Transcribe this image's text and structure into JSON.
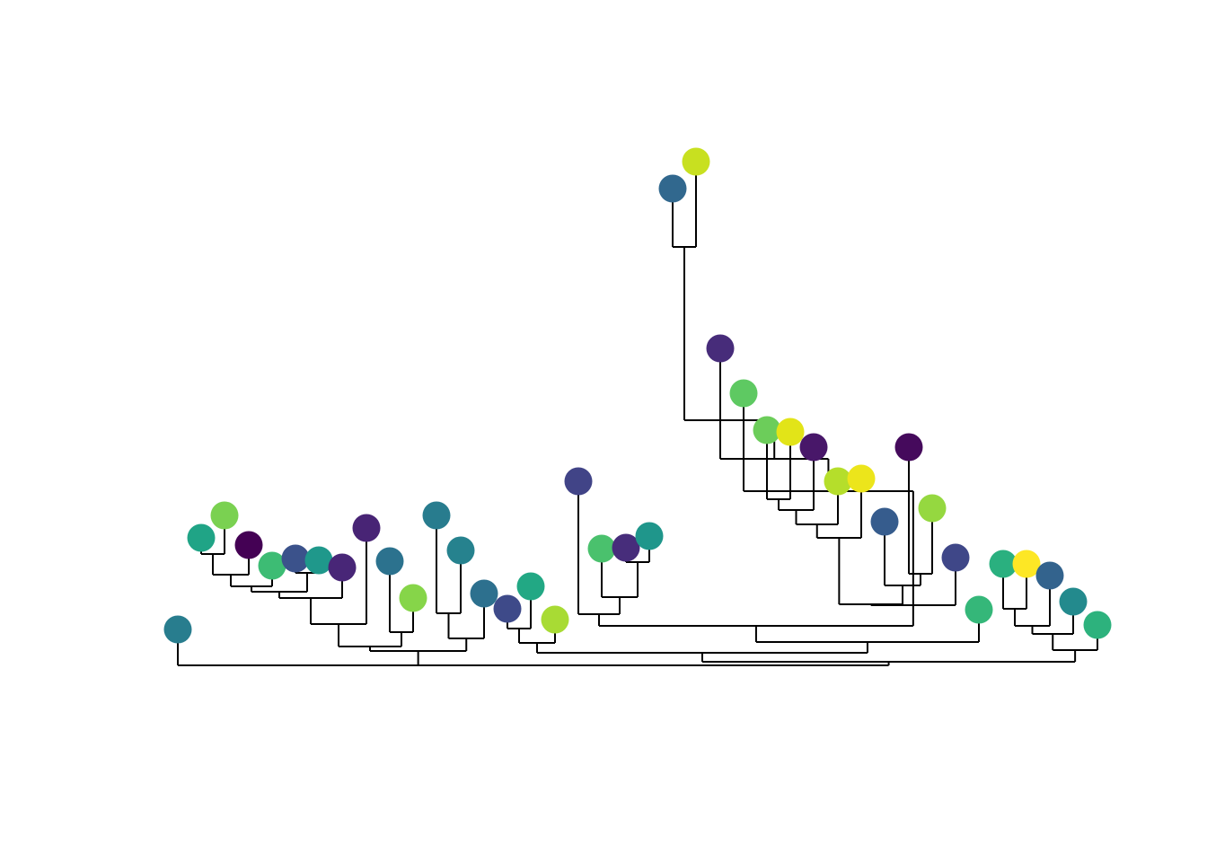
{
  "diagram": {
    "type": "dendrogram",
    "description_visible_text": "",
    "palette": "viridis",
    "tips": [
      {
        "id": "t01",
        "color": "#287d8e"
      },
      {
        "id": "t02",
        "color": "#20a486"
      },
      {
        "id": "t03",
        "color": "#7ad151"
      },
      {
        "id": "t04",
        "color": "#440154"
      },
      {
        "id": "t05",
        "color": "#3dbc74"
      },
      {
        "id": "t06",
        "color": "#3b528b"
      },
      {
        "id": "t07",
        "color": "#1f988b"
      },
      {
        "id": "t08",
        "color": "#482677"
      },
      {
        "id": "t09",
        "color": "#482475"
      },
      {
        "id": "t10",
        "color": "#2c728e"
      },
      {
        "id": "t11",
        "color": "#86d549"
      },
      {
        "id": "t12",
        "color": "#287c8e"
      },
      {
        "id": "t13",
        "color": "#26828e"
      },
      {
        "id": "t14",
        "color": "#2d708e"
      },
      {
        "id": "t15",
        "color": "#3e4a89"
      },
      {
        "id": "t16",
        "color": "#22a884"
      },
      {
        "id": "t17",
        "color": "#a8db34"
      },
      {
        "id": "t18",
        "color": "#414487"
      },
      {
        "id": "t19",
        "color": "#4ac16d"
      },
      {
        "id": "t20",
        "color": "#472d7b"
      },
      {
        "id": "t21",
        "color": "#1f968b"
      },
      {
        "id": "t22",
        "color": "#31688e"
      },
      {
        "id": "t23",
        "color": "#c8e020"
      },
      {
        "id": "t24",
        "color": "#472c7a"
      },
      {
        "id": "t25",
        "color": "#5ec962"
      },
      {
        "id": "t26",
        "color": "#6ccd5a"
      },
      {
        "id": "t27",
        "color": "#e2e418"
      },
      {
        "id": "t28",
        "color": "#481769"
      },
      {
        "id": "t29",
        "color": "#b5de2b"
      },
      {
        "id": "t30",
        "color": "#ece51b"
      },
      {
        "id": "t31",
        "color": "#365c8d"
      },
      {
        "id": "t32",
        "color": "#450a5c"
      },
      {
        "id": "t33",
        "color": "#95d840"
      },
      {
        "id": "t34",
        "color": "#3f4788"
      },
      {
        "id": "t35",
        "color": "#35b779"
      },
      {
        "id": "t36",
        "color": "#2ab07f"
      },
      {
        "id": "t37",
        "color": "#fde725"
      },
      {
        "id": "t38",
        "color": "#33638d"
      },
      {
        "id": "t39",
        "color": "#238a8d"
      },
      {
        "id": "t40",
        "color": "#2db27d"
      }
    ],
    "edge_color": "#000000"
  }
}
